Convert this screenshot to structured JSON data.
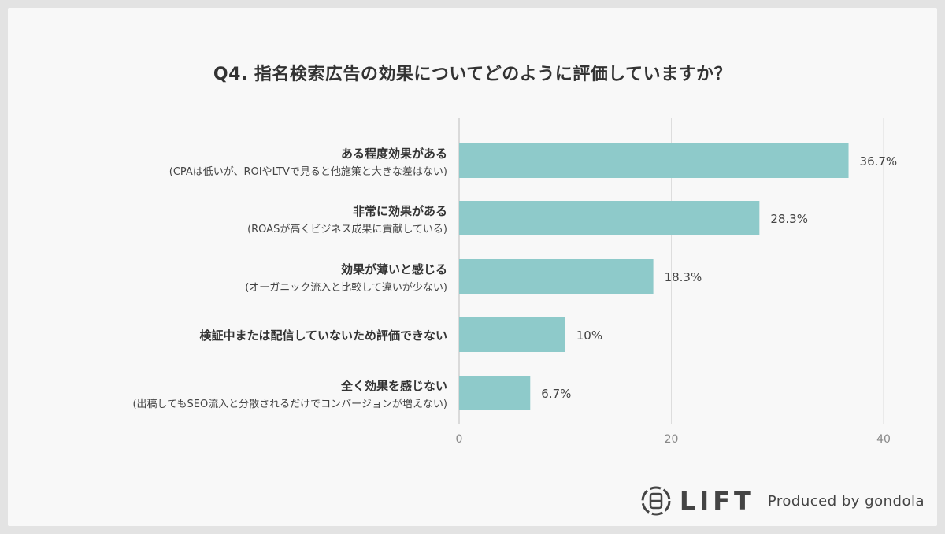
{
  "title": "Q4. 指名検索広告の効果についてどのように評価していますか？",
  "chart_data": {
    "type": "bar",
    "orientation": "horizontal",
    "categories": [
      {
        "label": "ある程度効果がある",
        "sublabel": "(CPAは低いが、ROIやLTVで見ると他施策と大きな差はない)"
      },
      {
        "label": "非常に効果がある",
        "sublabel": "(ROASが高くビジネス成果に貢献している)"
      },
      {
        "label": "効果が薄いと感じる",
        "sublabel": "(オーガニック流入と比較して違いが少ない)"
      },
      {
        "label": "検証中または配信していないため評価できない",
        "sublabel": ""
      },
      {
        "label": "全く効果を感じない",
        "sublabel": "(出稿してもSEO流入と分散されるだけでコンバージョンが増えない)"
      }
    ],
    "values": [
      36.7,
      28.3,
      18.3,
      10,
      6.7
    ],
    "value_labels": [
      "36.7%",
      "28.3%",
      "18.3%",
      "10%",
      "6.7%"
    ],
    "xlim": [
      0,
      40
    ],
    "xticks": [
      "0",
      "20",
      "40"
    ],
    "grid": true,
    "bar_color": "#8ecaca"
  },
  "footer": {
    "logo": "LIFT",
    "produced_by": "Produced by gondola"
  }
}
